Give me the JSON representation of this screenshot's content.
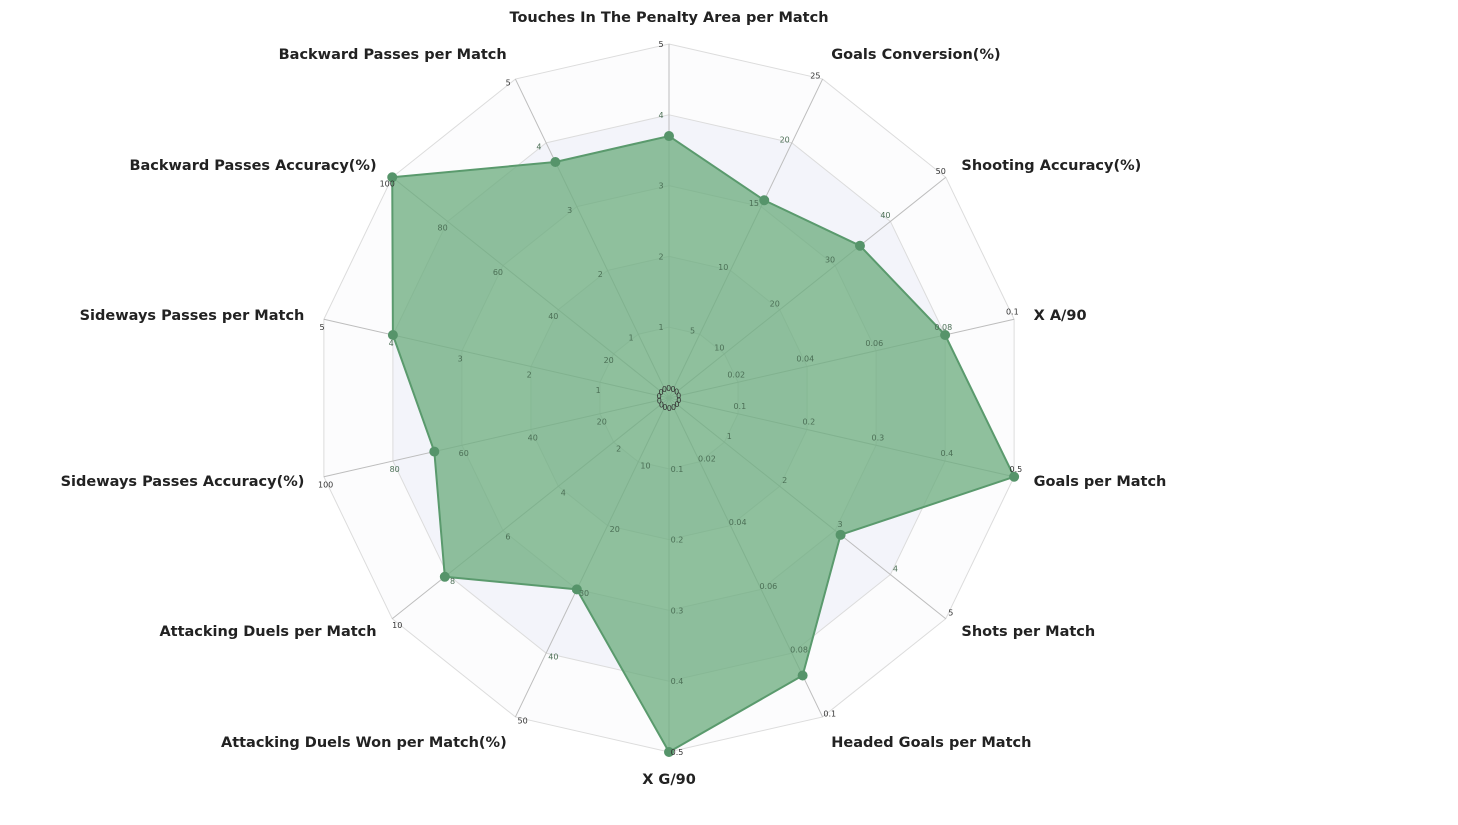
{
  "chart_data": {
    "type": "radar",
    "axes": [
      {
        "label": "Touches In The Penalty Area per Match",
        "max": 5,
        "ticks": [
          "0",
          "1",
          "2",
          "3",
          "4",
          "5"
        ],
        "value": 3.7
      },
      {
        "label": "Goals Conversion(%)",
        "max": 25,
        "ticks": [
          "0",
          "5",
          "10",
          "15",
          "20",
          "25"
        ],
        "value": 15.5
      },
      {
        "label": "Shooting Accuracy(%)",
        "max": 50,
        "ticks": [
          "0",
          "10",
          "20",
          "30",
          "40",
          "50"
        ],
        "value": 34.5
      },
      {
        "label": "X A/90",
        "max": 0.1,
        "ticks": [
          "0",
          "0.02",
          "0.04",
          "0.06",
          "0.08",
          "0.1"
        ],
        "value": 0.08
      },
      {
        "label": "Goals per Match",
        "max": 0.5,
        "ticks": [
          "0",
          "0.1",
          "0.2",
          "0.3",
          "0.4",
          "0.5"
        ],
        "value": 0.5
      },
      {
        "label": "Shots per Match",
        "max": 5,
        "ticks": [
          "0",
          "1",
          "2",
          "3",
          "4",
          "5"
        ],
        "value": 3.1
      },
      {
        "label": "Headed Goals per Match",
        "max": 0.1,
        "ticks": [
          "0",
          "0.02",
          "0.04",
          "0.06",
          "0.08",
          "0.1"
        ],
        "value": 0.087
      },
      {
        "label": "X G/90",
        "max": 0.5,
        "ticks": [
          "0",
          "0.1",
          "0.2",
          "0.3",
          "0.4",
          "0.5"
        ],
        "value": 0.5
      },
      {
        "label": "Attacking Duels Won per Match(%)",
        "max": 50,
        "ticks": [
          "0",
          "10",
          "20",
          "30",
          "40",
          "50"
        ],
        "value": 30
      },
      {
        "label": "Attacking Duels per Match",
        "max": 10,
        "ticks": [
          "0",
          "2",
          "4",
          "6",
          "8",
          "10"
        ],
        "value": 8.1
      },
      {
        "label": "Sideways Passes Accuracy(%)",
        "max": 100,
        "ticks": [
          "0",
          "20",
          "40",
          "60",
          "80",
          "100"
        ],
        "value": 68
      },
      {
        "label": "Sideways Passes per Match",
        "max": 5,
        "ticks": [
          "0",
          "1",
          "2",
          "3",
          "4",
          "5"
        ],
        "value": 4.0
      },
      {
        "label": "Backward Passes Accuracy(%)",
        "max": 100,
        "ticks": [
          "0",
          "20",
          "40",
          "60",
          "80",
          "100"
        ],
        "value": 100
      },
      {
        "label": "Backward Passes per Match",
        "max": 5,
        "ticks": [
          "0",
          "1",
          "2",
          "3",
          "4",
          "5"
        ],
        "value": 3.7
      }
    ],
    "series": [
      {
        "values": [
          3.7,
          15.5,
          34.5,
          0.08,
          0.5,
          3.1,
          0.087,
          0.5,
          30,
          8.1,
          68,
          4.0,
          100,
          3.7
        ]
      }
    ],
    "grid": true,
    "colors": {
      "series_line": "#5a9a6d",
      "series_fill": "#6fae82",
      "marker": "#56946a",
      "grid_line": "#dcdcdc",
      "spoke_line": "#bdbdbd",
      "band_shade": "#f3f4fa"
    }
  }
}
